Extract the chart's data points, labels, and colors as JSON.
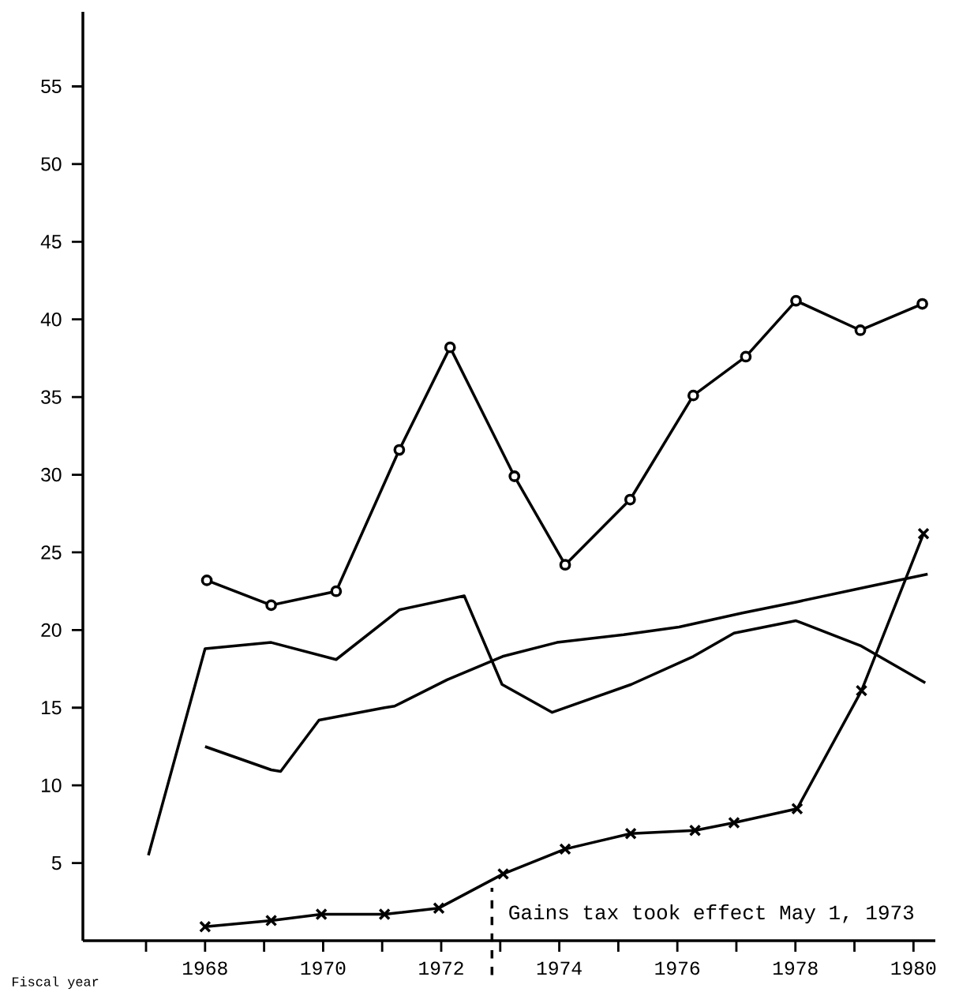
{
  "chart_data": {
    "type": "line",
    "xlabel": "Fiscal year",
    "xlim": [
      1965.93,
      1980.37
    ],
    "ylim": [
      0,
      59.8
    ],
    "xticks": [
      {
        "value": 1967,
        "label": null
      },
      1968,
      {
        "value": 1969,
        "label": null
      },
      1970,
      {
        "value": 1971,
        "label": null
      },
      1972,
      {
        "value": 1973,
        "label": null
      },
      1974,
      {
        "value": 1975,
        "label": null
      },
      1976,
      {
        "value": 1977,
        "label": null
      },
      1978,
      {
        "value": 1979,
        "label": null
      },
      1980
    ],
    "yticks": [
      5,
      10,
      15,
      20,
      25,
      30,
      35,
      40,
      45,
      50,
      55
    ],
    "ref_lines": [
      {
        "axis": "x",
        "value": 1972.86,
        "label": "Gains tax took effect May 1, 1973",
        "line_style": "dashed",
        "color": "#000000"
      }
    ],
    "series": [
      {
        "color": "#000000",
        "marker": "circle",
        "x": [
          1968.03,
          1969.12,
          1970.22,
          1971.29,
          1972.15,
          1973.24,
          1974.1,
          1975.2,
          1976.27,
          1977.16,
          1978.01,
          1979.1,
          1980.15
        ],
        "values": [
          23.2,
          21.6,
          22.5,
          31.6,
          38.2,
          29.9,
          24.2,
          28.4,
          35.1,
          37.6,
          41.2,
          39.3,
          41.0
        ]
      },
      {
        "color": "#000000",
        "marker": "none",
        "x": [
          1967.04,
          1968.0,
          1969.12,
          1970.22,
          1971.29,
          1972.39,
          1973.03,
          1973.88,
          1975.22,
          1976.27,
          1976.96,
          1978.01,
          1979.1,
          1980.2
        ],
        "values": [
          5.5,
          18.8,
          19.2,
          18.1,
          21.3,
          22.2,
          16.5,
          14.7,
          16.5,
          18.3,
          19.8,
          20.6,
          19.0,
          16.6
        ]
      },
      {
        "color": "#000000",
        "marker": "none",
        "x": [
          1968.0,
          1969.12,
          1969.28,
          1969.93,
          1971.04,
          1971.21,
          1972.1,
          1973.04,
          1973.96,
          1975.09,
          1976.03,
          1977.1,
          1978.01,
          1979.24,
          1980.24
        ],
        "values": [
          12.5,
          11.0,
          10.9,
          14.2,
          15.0,
          15.1,
          16.8,
          18.3,
          19.2,
          19.7,
          20.2,
          21.1,
          21.8,
          22.8,
          23.6
        ]
      },
      {
        "color": "#000000",
        "marker": "cross",
        "x": [
          1968.0,
          1969.12,
          1969.97,
          1971.04,
          1971.96,
          1973.05,
          1974.1,
          1975.21,
          1976.3,
          1976.96,
          1978.03,
          1979.12,
          1980.17
        ],
        "values": [
          0.9,
          1.3,
          1.7,
          1.7,
          2.1,
          4.3,
          5.9,
          6.9,
          7.1,
          7.6,
          8.5,
          16.1,
          26.2
        ]
      }
    ]
  }
}
